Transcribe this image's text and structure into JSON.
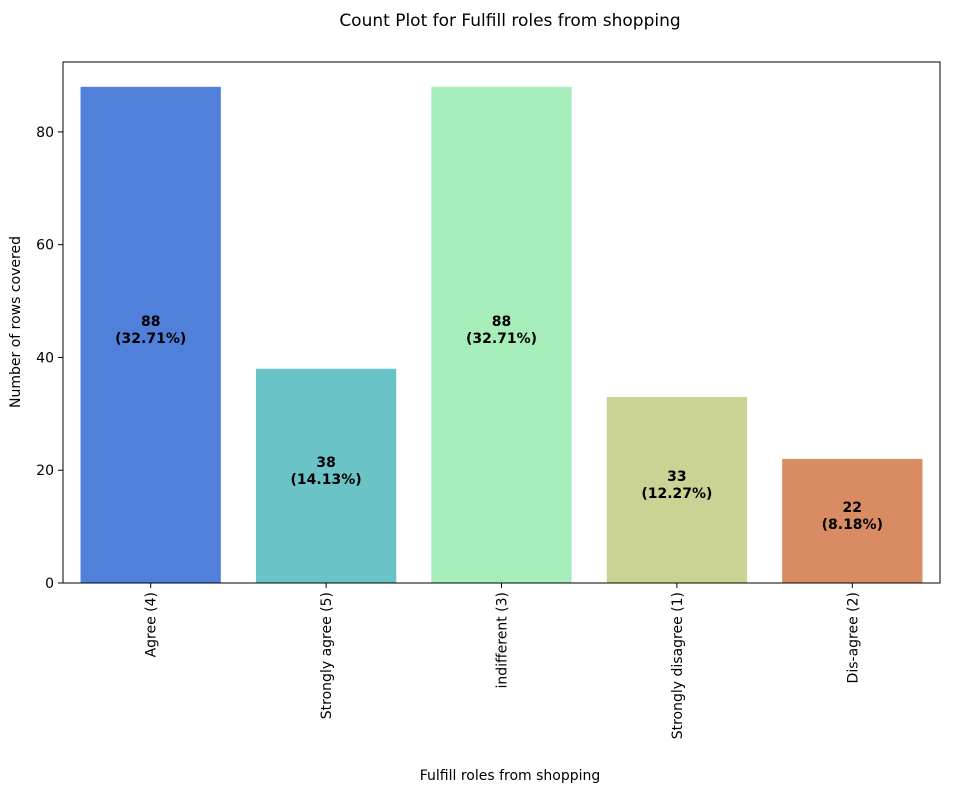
{
  "chart_data": {
    "type": "bar",
    "title": "Count Plot for Fulfill roles from shopping",
    "xlabel": "Fulfill roles from shopping",
    "ylabel": "Number of rows covered",
    "categories": [
      "Agree (4)",
      "Strongly agree (5)",
      "indifferent (3)",
      "Strongly disagree (1)",
      "Dis-agree (2)"
    ],
    "values": [
      88,
      38,
      88,
      33,
      22
    ],
    "bar_labels": [
      [
        "88",
        "(32.71%)"
      ],
      [
        "38",
        "(14.13%)"
      ],
      [
        "88",
        "(32.71%)"
      ],
      [
        "33",
        "(12.27%)"
      ],
      [
        "22",
        "(8.18%)"
      ]
    ],
    "colors": [
      "#5180da",
      "#6ac3c6",
      "#a6edba",
      "#cbd293",
      "#d98c63"
    ],
    "ylim": [
      0,
      92.4
    ],
    "yticks": [
      0,
      20,
      40,
      60,
      80
    ],
    "grid": false,
    "legend": "none"
  }
}
